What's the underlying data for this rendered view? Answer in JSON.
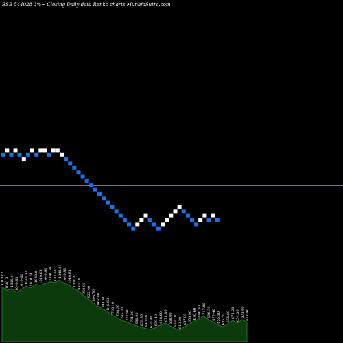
{
  "chart_data": {
    "type": "renko",
    "title": "BSE 544028  3%~  Closing Daily data  Renko  charts MunafaSutra.com",
    "colors": {
      "background": "#000000",
      "up_brick": "#ffffff",
      "down_brick": "#1e6fe0",
      "reference_line": "#b8651b",
      "volume_area": "#0d3a0d",
      "volume_edge": "#1f7a1f",
      "text": "#ffffff"
    },
    "reference_lines": [
      1020.2,
      942.5
    ],
    "y_range": [
      660,
      1180
    ],
    "bricks": [
      {
        "dir": "down",
        "value": 1010.6
      },
      {
        "dir": "up",
        "value": 1040.8
      },
      {
        "dir": "down",
        "value": 1010.6
      },
      {
        "dir": "up",
        "value": 1040.8
      },
      {
        "dir": "down",
        "value": 1010.6
      },
      {
        "dir": "up",
        "value": 1040.8
      },
      {
        "dir": "down",
        "value": 1010.6
      },
      {
        "dir": "up",
        "value": 1040.8
      },
      {
        "dir": "down",
        "value": 1010.6
      },
      {
        "dir": "up",
        "value": 1040.8
      },
      {
        "dir": "up",
        "value": 1040.8
      },
      {
        "dir": "down",
        "value": 1010.6
      },
      {
        "dir": "up",
        "value": 1040.8
      },
      {
        "dir": "up",
        "value": 1040.8
      },
      {
        "dir": "up",
        "value": 1040.8
      },
      {
        "dir": "down",
        "value": 1010.6
      },
      {
        "dir": "down",
        "value": 980.3
      },
      {
        "dir": "down",
        "value": 950.9
      },
      {
        "dir": "down",
        "value": 922.4
      },
      {
        "dir": "down",
        "value": 894.7
      },
      {
        "dir": "down",
        "value": 867.9
      },
      {
        "dir": "down",
        "value": 841.8
      },
      {
        "dir": "down",
        "value": 816.6
      },
      {
        "dir": "down",
        "value": 792.1
      },
      {
        "dir": "down",
        "value": 768.3
      },
      {
        "dir": "down",
        "value": 745.3
      },
      {
        "dir": "down",
        "value": 722.9
      },
      {
        "dir": "down",
        "value": 701.2
      },
      {
        "dir": "down",
        "value": 680.2
      },
      {
        "dir": "down",
        "value": 659.8
      },
      {
        "dir": "down",
        "value": 640.0
      },
      {
        "dir": "down",
        "value": 620.8
      },
      {
        "dir": "up",
        "value": 639.4
      },
      {
        "dir": "up",
        "value": 658.6
      },
      {
        "dir": "up",
        "value": 678.4
      },
      {
        "dir": "down",
        "value": 658.0
      },
      {
        "dir": "down",
        "value": 638.3
      },
      {
        "dir": "down",
        "value": 619.2
      },
      {
        "dir": "up",
        "value": 637.8
      },
      {
        "dir": "up",
        "value": 656.9
      },
      {
        "dir": "up",
        "value": 676.6
      },
      {
        "dir": "up",
        "value": 696.9
      },
      {
        "dir": "up",
        "value": 717.8
      },
      {
        "dir": "down",
        "value": 696.3
      },
      {
        "dir": "down",
        "value": 675.4
      },
      {
        "dir": "down",
        "value": 655.1
      },
      {
        "dir": "down",
        "value": 635.5
      },
      {
        "dir": "up",
        "value": 654.6
      },
      {
        "dir": "up",
        "value": 674.2
      },
      {
        "dir": "down",
        "value": 654.0
      },
      {
        "dir": "up",
        "value": 673.6
      },
      {
        "dir": "down",
        "value": 653.4
      }
    ],
    "brick_cells": [
      [
        1,
        5
      ],
      [
        2,
        4
      ],
      [
        3,
        5
      ],
      [
        4,
        4
      ],
      [
        5,
        5
      ],
      [
        6,
        6
      ],
      [
        7,
        5
      ],
      [
        8,
        4
      ],
      [
        9,
        5
      ],
      [
        10,
        4
      ],
      [
        11,
        4
      ],
      [
        12,
        5
      ],
      [
        13,
        4
      ],
      [
        14,
        4
      ],
      [
        15,
        5
      ],
      [
        16,
        6
      ],
      [
        17,
        7
      ],
      [
        18,
        8
      ],
      [
        19,
        9
      ],
      [
        20,
        10
      ],
      [
        21,
        11
      ],
      [
        22,
        12
      ],
      [
        23,
        13
      ],
      [
        24,
        14
      ],
      [
        25,
        15
      ],
      [
        26,
        16
      ],
      [
        27,
        17
      ],
      [
        28,
        18
      ],
      [
        29,
        19
      ],
      [
        30,
        20
      ],
      [
        31,
        21
      ],
      [
        32,
        22
      ],
      [
        33,
        21
      ],
      [
        34,
        20
      ],
      [
        35,
        19
      ],
      [
        36,
        20
      ],
      [
        37,
        21
      ],
      [
        38,
        22
      ],
      [
        39,
        21
      ],
      [
        40,
        20
      ],
      [
        41,
        19
      ],
      [
        42,
        18
      ],
      [
        43,
        17
      ],
      [
        44,
        18
      ],
      [
        45,
        19
      ],
      [
        46,
        20
      ],
      [
        47,
        21
      ],
      [
        48,
        20
      ],
      [
        49,
        19
      ],
      [
        50,
        20
      ],
      [
        51,
        19
      ],
      [
        52,
        20
      ]
    ],
    "volume_labels": [
      "1010.61",
      "1040.81",
      "1010.61",
      "1040.81",
      "1010.61",
      "1040.81",
      "1010.61",
      "1040.81",
      "1010.61",
      "1040.81",
      "1040.81",
      "1010.61",
      "1040.81",
      "1040.81",
      "1040.81",
      "1010.61",
      "980.30",
      "950.90",
      "922.40",
      "894.70",
      "867.90",
      "841.80",
      "816.60",
      "792.10",
      "768.30",
      "745.30",
      "722.90",
      "701.20",
      "680.20",
      "659.80",
      "640.00",
      "620.80",
      "639.40",
      "658.60",
      "678.40",
      "658.00",
      "638.30",
      "619.20",
      "637.80",
      "656.90",
      "676.60",
      "696.90",
      "717.80",
      "696.30",
      "675.40",
      "655.10",
      "635.50",
      "654.60",
      "674.20",
      "654.00",
      "673.60",
      "653.40"
    ],
    "volume_values": [
      62,
      58,
      60,
      56,
      59,
      63,
      61,
      65,
      64,
      66,
      68,
      67,
      70,
      66,
      64,
      60,
      57,
      52,
      48,
      44,
      40,
      37,
      34,
      30,
      27,
      24,
      22,
      20,
      18,
      16,
      15,
      14,
      16,
      19,
      21,
      18,
      15,
      13,
      17,
      20,
      23,
      26,
      29,
      25,
      22,
      19,
      17,
      20,
      24,
      21,
      25,
      22
    ]
  }
}
